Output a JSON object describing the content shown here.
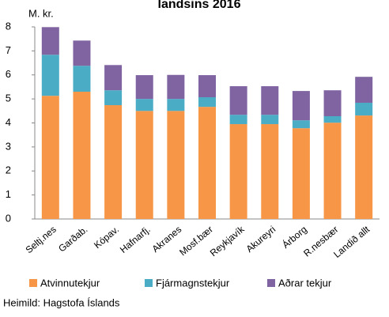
{
  "chart_data": {
    "type": "stacked_bar",
    "title": "landsins 2016",
    "y_label": "M. kr.",
    "source": "Heimild: Hagstofa Íslands",
    "categories": [
      "Seltj.nes",
      "Garðab.",
      "Kópav.",
      "Hafnarfj.",
      "Akranes",
      "Mosf.bær",
      "Reykjavík",
      "Akureyri",
      "Árborg",
      "R.nesbær",
      "Landið allt"
    ],
    "series": [
      {
        "name": "Atvinnutekjur",
        "color": "#f79646",
        "values": [
          5.13,
          5.3,
          4.74,
          4.5,
          4.5,
          4.67,
          3.95,
          3.95,
          3.78,
          4.01,
          4.31
        ]
      },
      {
        "name": "Fjármagnstekjur",
        "color": "#4bacc6",
        "values": [
          1.71,
          1.08,
          0.62,
          0.5,
          0.5,
          0.4,
          0.39,
          0.39,
          0.33,
          0.27,
          0.53
        ]
      },
      {
        "name": "Aðrar tekjur",
        "color": "#8064a2",
        "values": [
          1.15,
          1.05,
          1.05,
          0.99,
          1.0,
          0.92,
          1.19,
          1.19,
          1.22,
          1.08,
          1.08
        ]
      }
    ],
    "ylim": [
      0,
      8
    ],
    "yticks": [
      0,
      1,
      2,
      3,
      4,
      5,
      6,
      7,
      8
    ]
  }
}
